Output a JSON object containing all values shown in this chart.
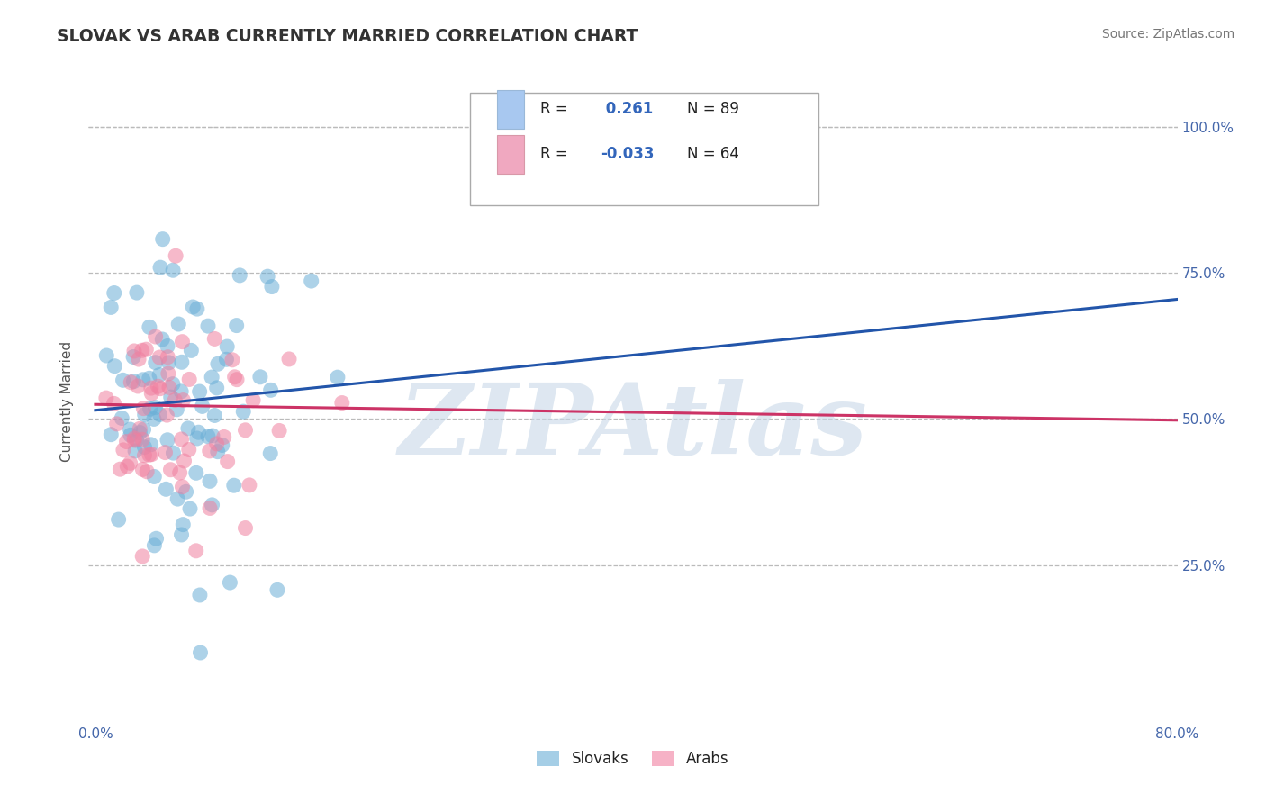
{
  "title": "SLOVAK VS ARAB CURRENTLY MARRIED CORRELATION CHART",
  "source_text": "Source: ZipAtlas.com",
  "ylabel": "Currently Married",
  "xlim": [
    -0.005,
    0.8
  ],
  "ylim": [
    -0.02,
    1.08
  ],
  "xtick_positions": [
    0.0,
    0.1,
    0.2,
    0.3,
    0.4,
    0.5,
    0.6,
    0.7,
    0.8
  ],
  "xticklabels": [
    "0.0%",
    "",
    "",
    "",
    "",
    "",
    "",
    "",
    "80.0%"
  ],
  "ytick_positions": [
    0.25,
    0.5,
    0.75,
    1.0
  ],
  "yticklabels": [
    "25.0%",
    "50.0%",
    "75.0%",
    "100.0%"
  ],
  "slovak_color": "#6aaed6",
  "arab_color": "#f080a0",
  "slovak_line_color": "#2255aa",
  "arab_line_color": "#cc3366",
  "legend_box_color": "#a8c8f0",
  "legend_box_color2": "#f0a8c0",
  "watermark": "ZIPAtlas",
  "watermark_color": "#c8d8e8",
  "background_color": "#ffffff",
  "grid_color": "#bbbbbb",
  "title_color": "#333333",
  "axis_label_color": "#555555",
  "tick_color": "#4466aa",
  "legend_text_color": "#222222",
  "legend_value_color": "#3366bb",
  "N_slovak": 89,
  "N_arab": 64,
  "R_slovak": 0.261,
  "R_arab": -0.033,
  "sk_line_x0": 0.0,
  "sk_line_y0": 0.515,
  "sk_line_x1": 0.8,
  "sk_line_y1": 0.705,
  "ar_line_x0": 0.0,
  "ar_line_y0": 0.525,
  "ar_line_x1": 0.8,
  "ar_line_y1": 0.498
}
